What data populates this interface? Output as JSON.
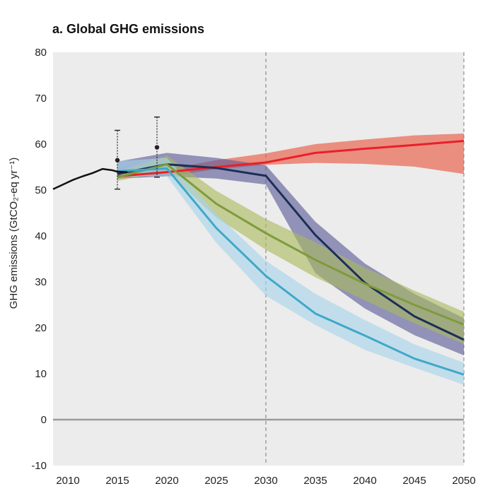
{
  "chart_data": {
    "type": "line",
    "title": "a. Global GHG emissions",
    "ylabel": "GHG emissions (GtCO₂-eq yr⁻¹)",
    "xlabel": "",
    "xlim": [
      2008.5,
      2050
    ],
    "ylim": [
      -10,
      80
    ],
    "x_ticks": [
      2010,
      2015,
      2020,
      2025,
      2030,
      2035,
      2040,
      2045,
      2050
    ],
    "y_ticks": [
      -10,
      0,
      10,
      20,
      30,
      40,
      50,
      60,
      70,
      80
    ],
    "grid": false,
    "legend": "none",
    "reference_lines": [
      {
        "type": "horizontal",
        "y": 0,
        "color": "#9a9a9a",
        "style": "solid"
      },
      {
        "type": "vertical",
        "x": 2030,
        "color": "#777777",
        "style": "dashed"
      },
      {
        "type": "vertical",
        "x": 2050,
        "color": "#777777",
        "style": "dashed"
      }
    ],
    "historical": {
      "color": "#111111",
      "x": [
        2008.5,
        2009.5,
        2010.5,
        2011.5,
        2012.5,
        2013.5,
        2014.5,
        2015,
        2016
      ],
      "values": [
        50.2,
        51.2,
        52.2,
        53.0,
        53.7,
        54.6,
        54.3,
        54.0,
        53.9
      ]
    },
    "error_bars": [
      {
        "x": 2015,
        "y": 56.5,
        "low": 50.2,
        "high": 63.0
      },
      {
        "x": 2019,
        "y": 59.3,
        "low": 52.8,
        "high": 65.9
      }
    ],
    "series": [
      {
        "color": "#e8202a",
        "band_color": "#e8543d",
        "x": [
          2015,
          2020,
          2025,
          2030,
          2035,
          2040,
          2045,
          2050
        ],
        "values": [
          53.0,
          53.9,
          55.0,
          56.0,
          58.1,
          59.0,
          59.8,
          60.7
        ],
        "band_low": [
          52.5,
          53.0,
          54.5,
          55.5,
          55.9,
          55.7,
          55.1,
          53.5
        ],
        "band_high": [
          54.0,
          54.5,
          56.5,
          58.0,
          60.0,
          61.0,
          61.9,
          62.3
        ]
      },
      {
        "color": "#1c2f55",
        "band_color": "#5a5a98",
        "x": [
          2015,
          2020,
          2025,
          2030,
          2035,
          2040,
          2045,
          2050
        ],
        "values": [
          53.5,
          55.6,
          54.8,
          53.1,
          40.2,
          29.8,
          22.5,
          17.4
        ],
        "band_low": [
          52.5,
          53.0,
          52.5,
          51.2,
          31.9,
          24.2,
          18.4,
          14.0
        ],
        "band_high": [
          56.2,
          58.1,
          57.0,
          55.4,
          43.1,
          34.0,
          27.4,
          22.1
        ]
      },
      {
        "color": "#7e9b3c",
        "band_color": "#a9ba5e",
        "x": [
          2015,
          2020,
          2025,
          2030,
          2035,
          2040,
          2045,
          2050
        ],
        "values": [
          52.8,
          55.6,
          47.0,
          40.6,
          34.8,
          29.6,
          25.0,
          20.7
        ],
        "band_low": [
          52.0,
          54.0,
          44.0,
          37.0,
          31.0,
          26.0,
          21.0,
          16.5
        ],
        "band_high": [
          54.0,
          57.5,
          49.8,
          43.7,
          38.6,
          33.1,
          28.1,
          23.5
        ]
      },
      {
        "color": "#3fa8c8",
        "band_color": "#a6d3ea",
        "x": [
          2015,
          2020,
          2025,
          2030,
          2035,
          2040,
          2045,
          2050
        ],
        "values": [
          54.1,
          54.7,
          41.7,
          31.3,
          23.1,
          18.3,
          13.3,
          9.8
        ],
        "band_low": [
          52.8,
          53.0,
          38.5,
          27.0,
          20.6,
          15.2,
          11.3,
          7.6
        ],
        "band_high": [
          56.3,
          57.0,
          44.8,
          34.6,
          27.4,
          21.7,
          16.4,
          12.4
        ]
      }
    ]
  }
}
